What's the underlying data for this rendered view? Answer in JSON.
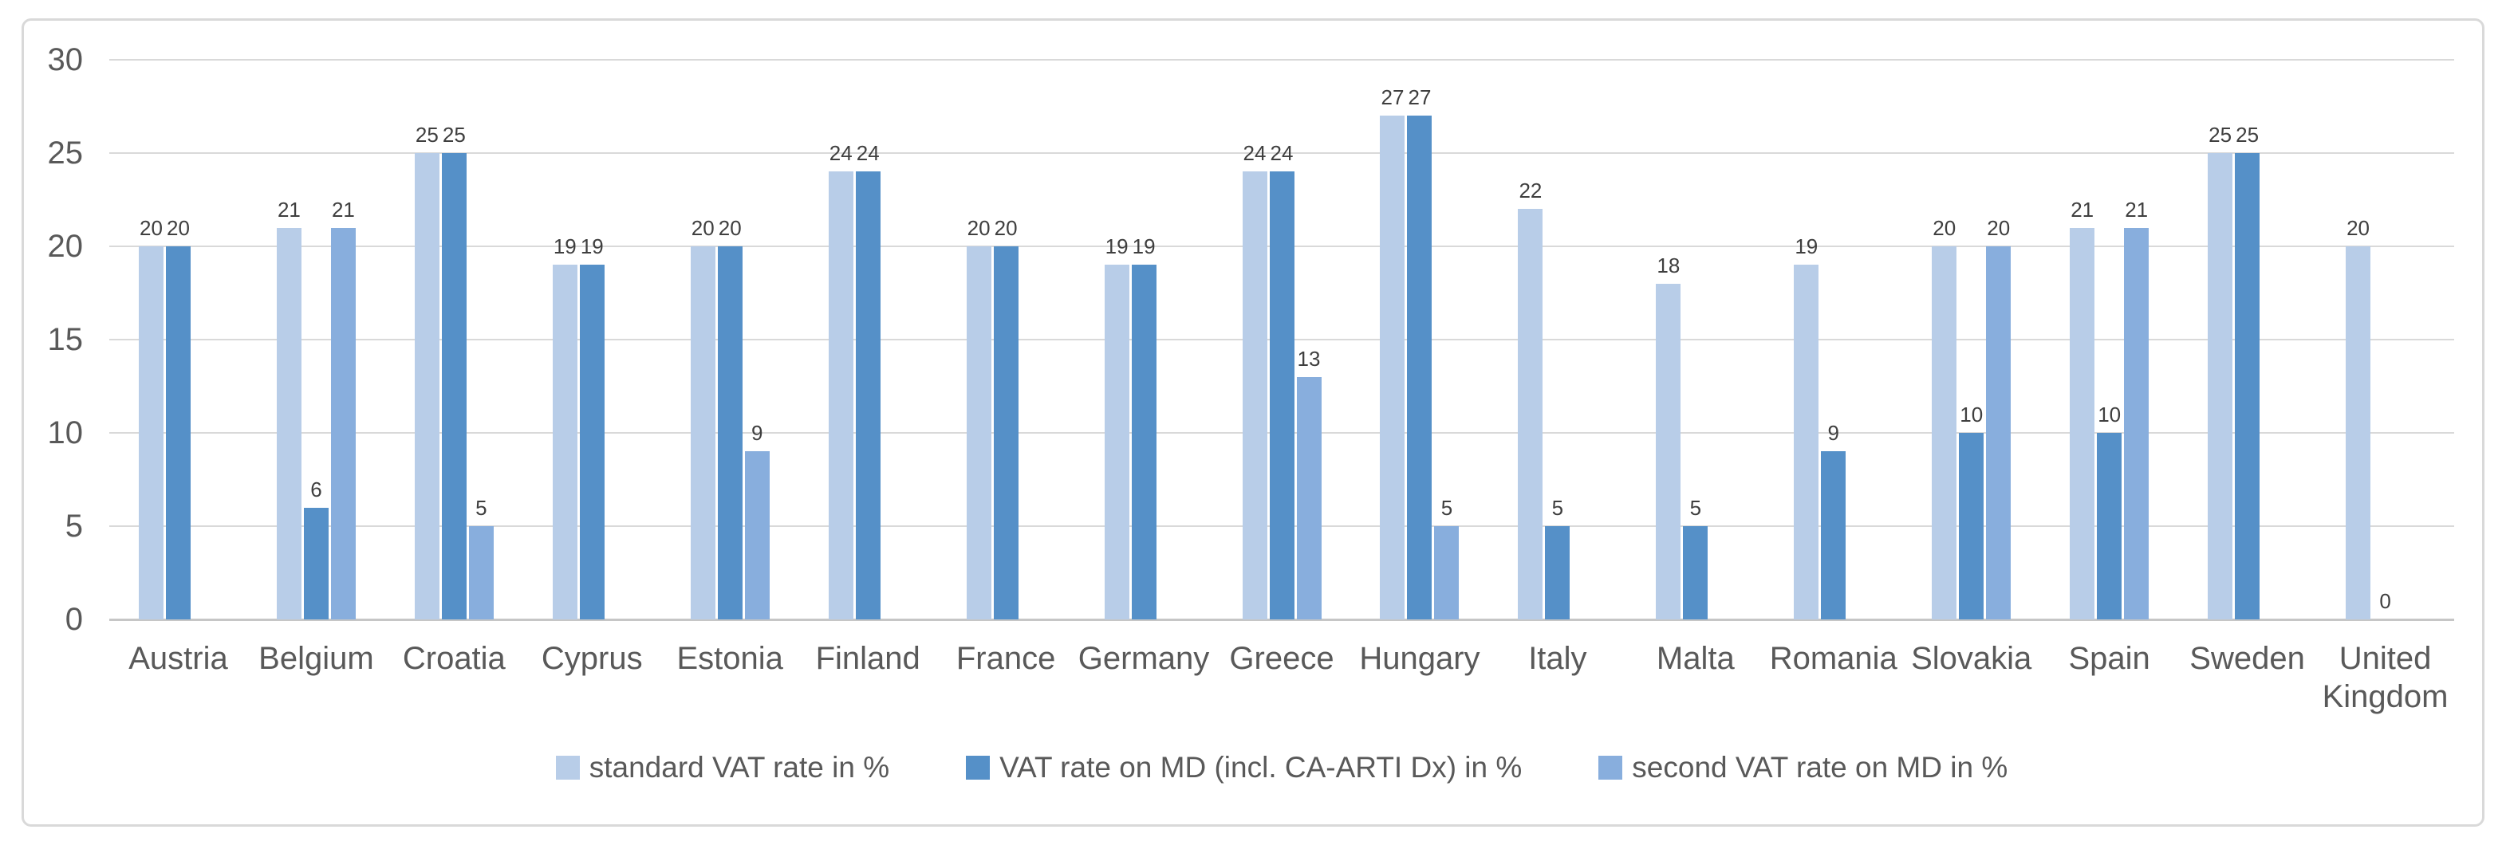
{
  "chart_data": {
    "type": "bar",
    "title": "",
    "xlabel": "",
    "ylabel": "",
    "ylim": [
      0,
      30
    ],
    "yticks": [
      30,
      25,
      20,
      15,
      10,
      5,
      0
    ],
    "grid": true,
    "legend_position": "bottom",
    "categories": [
      "Austria",
      "Belgium",
      "Croatia",
      "Cyprus",
      "Estonia",
      "Finland",
      "France",
      "Germany",
      "Greece",
      "Hungary",
      "Italy",
      "Malta",
      "Romania",
      "Slovakia",
      "Spain",
      "Sweden",
      "United Kingdom"
    ],
    "series": [
      {
        "name": "standard VAT rate in %",
        "color": "#b8cde8",
        "values": [
          20,
          21,
          25,
          19,
          20,
          24,
          20,
          19,
          24,
          27,
          22,
          18,
          19,
          20,
          21,
          25,
          20
        ]
      },
      {
        "name": "VAT rate on MD (incl. CA-ARTI Dx) in %",
        "color": "#5590c8",
        "values": [
          20,
          6,
          25,
          19,
          20,
          24,
          20,
          19,
          24,
          27,
          5,
          5,
          9,
          10,
          10,
          25,
          0
        ]
      },
      {
        "name": "second VAT rate on MD in %",
        "color": "#88aedd",
        "values": [
          null,
          21,
          5,
          null,
          9,
          null,
          null,
          null,
          13,
          5,
          null,
          null,
          null,
          20,
          21,
          null,
          null
        ]
      }
    ]
  },
  "colors": {
    "background": "#ffffff",
    "frame_border": "#d9d9d9",
    "gridline": "#d9d9d9",
    "axis_line": "#c6c6c6",
    "tick_text": "#595959",
    "category_text": "#595959",
    "data_label_text": "#3f3f3f",
    "legend_text": "#595959"
  }
}
